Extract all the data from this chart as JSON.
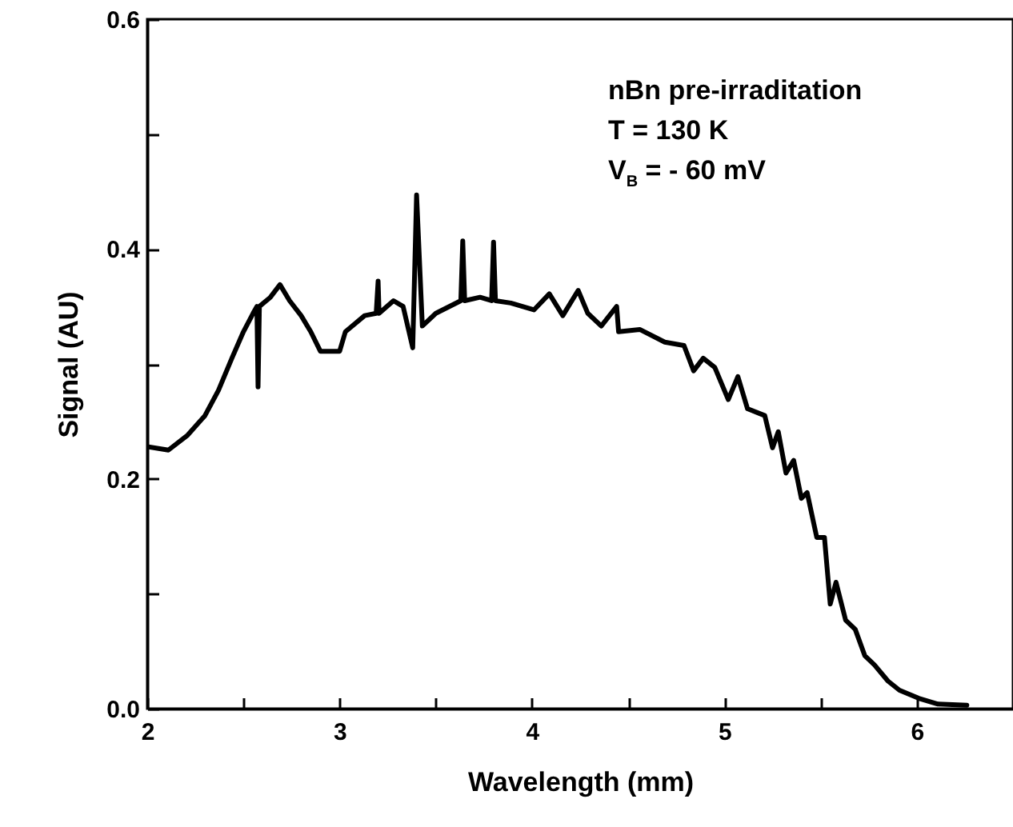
{
  "chart_data": {
    "type": "line",
    "xlabel": "Wavelength (mm)",
    "ylabel": "Signal (AU)",
    "annotations": [
      "nBn pre-irraditation",
      "T = 130 K",
      "V$_{B}$ = - 60 mV"
    ],
    "xlim": [
      2,
      6.5
    ],
    "xticks": [
      2,
      {
        "value": 2.5,
        "label": null
      },
      3,
      {
        "value": 3.5,
        "label": null
      },
      4,
      {
        "value": 4.5,
        "label": null
      },
      5,
      {
        "value": 5.5,
        "label": null
      },
      6
    ],
    "ylim": [
      0,
      0.6
    ],
    "yticks": [
      {
        "value": 0,
        "label": "0.0"
      },
      {
        "value": 0.1,
        "label": null
      },
      0.2,
      {
        "value": 0.3,
        "label": null
      },
      0.4,
      {
        "value": 0.5,
        "label": null
      },
      0.6
    ],
    "grid": false,
    "marker": "none",
    "line_style": "solid",
    "series": [
      {
        "color": "#000000",
        "x": [
          2.0,
          2.11,
          2.21,
          2.3,
          2.37,
          2.44,
          2.5,
          2.55,
          2.57,
          2.576,
          2.583,
          2.64,
          2.69,
          2.74,
          2.8,
          2.85,
          2.9,
          3.0,
          3.03,
          3.13,
          3.19,
          3.2,
          3.205,
          3.28,
          3.33,
          3.38,
          3.4,
          3.43,
          3.5,
          3.63,
          3.64,
          3.65,
          3.73,
          3.79,
          3.8,
          3.81,
          3.89,
          4.01,
          4.09,
          4.16,
          4.24,
          4.29,
          4.36,
          4.44,
          4.45,
          4.56,
          4.69,
          4.79,
          4.84,
          4.89,
          4.95,
          5.02,
          5.07,
          5.12,
          5.21,
          5.25,
          5.28,
          5.32,
          5.36,
          5.4,
          5.43,
          5.48,
          5.52,
          5.55,
          5.58,
          5.63,
          5.68,
          5.73,
          5.78,
          5.85,
          5.91,
          6.01,
          6.11,
          6.26
        ],
        "values": [
          0.228,
          0.225,
          0.238,
          0.255,
          0.277,
          0.305,
          0.328,
          0.344,
          0.35,
          0.28,
          0.35,
          0.358,
          0.369,
          0.355,
          0.342,
          0.328,
          0.311,
          0.311,
          0.328,
          0.342,
          0.344,
          0.372,
          0.344,
          0.355,
          0.35,
          0.314,
          0.447,
          0.333,
          0.344,
          0.355,
          0.407,
          0.355,
          0.358,
          0.355,
          0.406,
          0.355,
          0.353,
          0.347,
          0.361,
          0.342,
          0.364,
          0.344,
          0.333,
          0.35,
          0.328,
          0.33,
          0.319,
          0.316,
          0.294,
          0.305,
          0.297,
          0.269,
          0.289,
          0.261,
          0.255,
          0.227,
          0.241,
          0.205,
          0.216,
          0.183,
          0.188,
          0.149,
          0.149,
          0.091,
          0.11,
          0.077,
          0.069,
          0.046,
          0.038,
          0.024,
          0.016,
          0.009,
          0.004,
          0.003
        ]
      }
    ]
  }
}
